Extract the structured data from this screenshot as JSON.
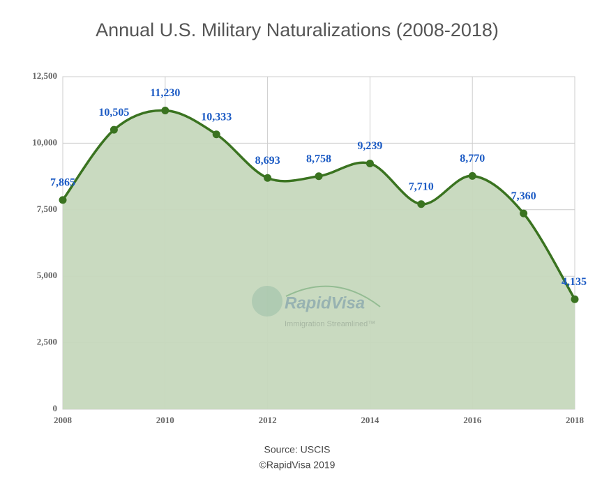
{
  "chart_data": {
    "type": "area",
    "title": "Annual U.S. Military Naturalizations (2008-2018)",
    "x": [
      2008,
      2009,
      2010,
      2011,
      2012,
      2013,
      2014,
      2015,
      2016,
      2017,
      2018
    ],
    "values": [
      7865,
      10505,
      11230,
      10333,
      8693,
      8758,
      9239,
      7710,
      8770,
      7360,
      4135
    ],
    "value_labels": [
      "7,865",
      "10,505",
      "11,230",
      "10,333",
      "8,693",
      "8,758",
      "9,239",
      "7,710",
      "8,770",
      "7,360",
      "4,135"
    ],
    "color": "#3a7320",
    "fill": "#c6d8bd",
    "xlim": [
      2008,
      2018
    ],
    "xticks": [
      2008,
      2010,
      2012,
      2014,
      2016,
      2018
    ],
    "ylim": [
      0,
      12500
    ],
    "yticks": [
      0,
      {
        "value": 2500,
        "label": "2,500"
      },
      {
        "value": 5000,
        "label": "5,000"
      },
      {
        "value": 7500,
        "label": "7,500"
      },
      {
        "value": 10000,
        "label": "10,000"
      },
      {
        "value": 12500,
        "label": "12,500"
      }
    ],
    "grid": true,
    "watermark": [
      "RapidVisa",
      "Immigration Streamlined™"
    ],
    "source": "Source: USCIS",
    "copyright": "©RapidVisa 2019"
  }
}
